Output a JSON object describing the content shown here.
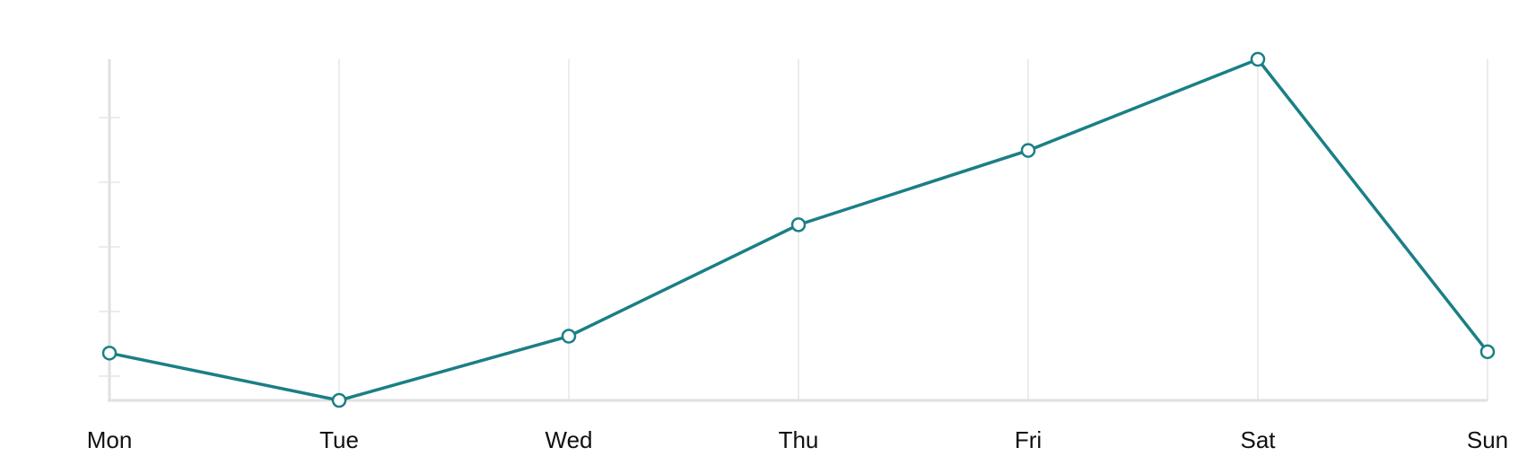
{
  "colors": {
    "series": "#1a7f86"
  },
  "chart_data": {
    "type": "line",
    "categories": [
      "Mon",
      "Tue",
      "Wed",
      "Thu",
      "Fri",
      "Sat",
      "Sun"
    ],
    "series": [
      {
        "values": [
          14,
          7,
          16.5,
          33,
          44,
          57.5,
          14.2
        ]
      }
    ],
    "ylim": [
      7,
      57.5
    ],
    "grid": "vertical",
    "xlabel": "",
    "ylabel": "",
    "title": ""
  }
}
